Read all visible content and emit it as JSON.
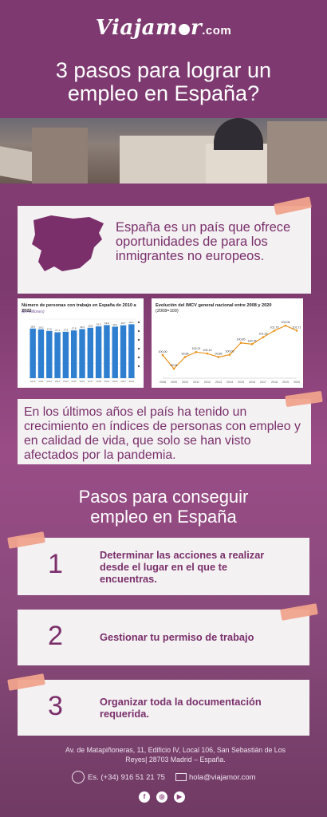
{
  "header": {
    "logo": "Viajam",
    "logo_rest": "r",
    "logo_domain": ".com",
    "title_line1": "3 pasos para lograr un",
    "title_line2": "empleo en España?"
  },
  "intro": {
    "text": "España es un país que ofrece oportunidades de para los inmigrantes no europeos."
  },
  "chart_left": {
    "title": "Número de personas con trabajo en España de 2010 a 2022",
    "subtitle": "(en millones)"
  },
  "chart_data": [
    {
      "type": "bar",
      "title": "Número de personas con trabajo en España de 2010 a 2022",
      "ylabel": "",
      "categories": [
        "2010",
        "2011",
        "2012",
        "2013",
        "2014",
        "2015",
        "2016",
        "2017",
        "2018",
        "2019",
        "2020",
        "2021",
        "2022"
      ],
      "values": [
        18.5,
        18.2,
        17.6,
        17.1,
        17.3,
        17.8,
        18.3,
        18.8,
        19.3,
        19.8,
        19.2,
        19.7,
        20.1
      ],
      "color": "#2f7fd1",
      "ylim": [
        0,
        22
      ]
    },
    {
      "type": "line",
      "title": "Evolución del IMCV general nacional entre 2008 y 2020",
      "subtitle": "(2008=100)",
      "x": [
        "2008",
        "2009",
        "2010",
        "2011",
        "2012",
        "2013",
        "2014",
        "2015",
        "2016",
        "2017",
        "2018",
        "2019",
        "2020"
      ],
      "values": [
        100.0,
        99.04,
        99.86,
        100.21,
        100.1,
        99.86,
        100.02,
        100.85,
        100.76,
        101.25,
        101.7,
        102.06,
        101.71
      ],
      "labels": [
        "100,00",
        "99,04",
        "99,86",
        "100,21",
        "100,10",
        "99,86",
        "100,02",
        "100,85",
        "100,76",
        "101,25",
        "101,70",
        "102,06",
        "101,71"
      ],
      "color": "#e8941e",
      "ylim": [
        98.6,
        102.4
      ]
    }
  ],
  "chart_right": {
    "title": "Evolución del IMCV general nacional entre 2008 y 2020",
    "subtitle": "(2008=100)"
  },
  "body": {
    "text": "En los últimos años el país ha tenido un crecimiento en índices de personas con empleo y en calidad de vida, que solo se han visto afectados por la pandemia."
  },
  "steps_section": {
    "title_line1": "Pasos para conseguir",
    "title_line2": "empleo en España"
  },
  "steps": [
    {
      "number": "1",
      "text": "Determinar las acciones a realizar desde el lugar en el que te encuentras."
    },
    {
      "number": "2",
      "text": "Gestionar tu permiso de trabajo"
    },
    {
      "number": "3",
      "text": "Organizar toda la documentación requerida."
    }
  ],
  "footer": {
    "address": "Av. de Matapiñoneras, 11, Edificio IV, Local 106, San Sebastián de Los Reyes| 28703 Madrid – España.",
    "phone": "Es. (+34) 916 51 21 75",
    "email": "hola@viajamor.com"
  },
  "colors": {
    "purple": "#7e3a70",
    "text_purple": "#7a2f6b",
    "card": "#f3f1f2",
    "tape": "#f0a38c"
  }
}
